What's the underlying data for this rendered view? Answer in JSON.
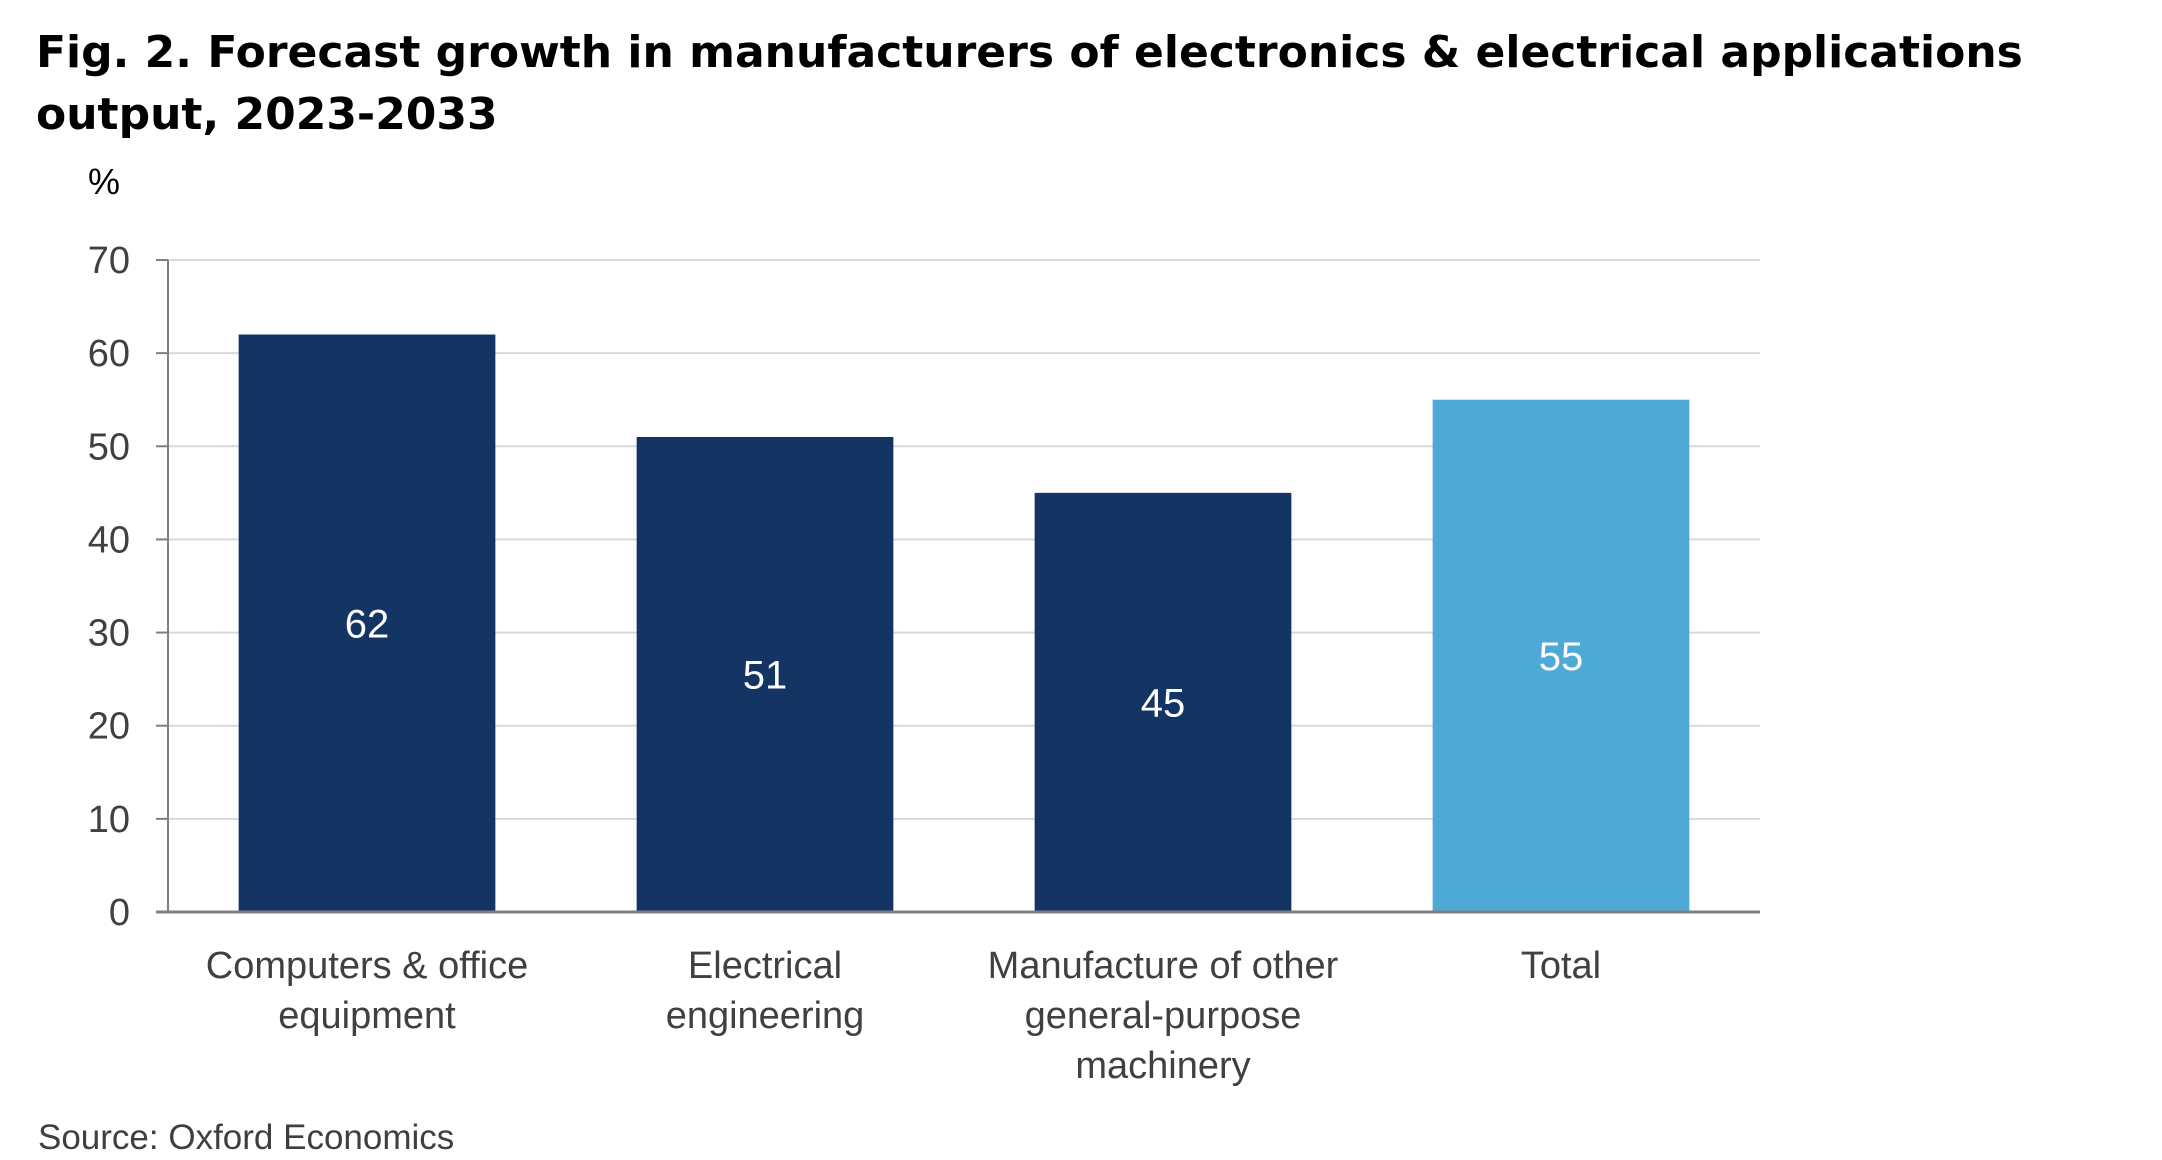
{
  "page": {
    "title": "Fig. 2. Forecast growth in manufacturers of electronics & electrical applications output, 2023-2033",
    "source": "Source: Oxford Economics"
  },
  "chart_data": {
    "type": "bar",
    "title": "Fig. 2. Forecast growth in manufacturers of electronics & electrical applications output, 2023-2033",
    "ylabel": "%",
    "xlabel": "",
    "ylim": [
      0,
      70
    ],
    "yticks": [
      0,
      10,
      20,
      30,
      40,
      50,
      60,
      70
    ],
    "grid": true,
    "categories": [
      [
        "Computers & office",
        "equipment"
      ],
      [
        "Electrical",
        "engineering"
      ],
      [
        "Manufacture of other",
        "general-purpose",
        "machinery"
      ],
      [
        "Total"
      ]
    ],
    "values": [
      62,
      51,
      45,
      55
    ],
    "data_labels": [
      "62",
      "51",
      "45",
      "55"
    ],
    "colors": [
      "#143464",
      "#143464",
      "#143464",
      "#4fa9d7"
    ],
    "colors_meta": {
      "grid": "#d9d9d9",
      "axis": "#808080",
      "tick_text": "#404040",
      "data_label_text": "#ffffff"
    }
  }
}
